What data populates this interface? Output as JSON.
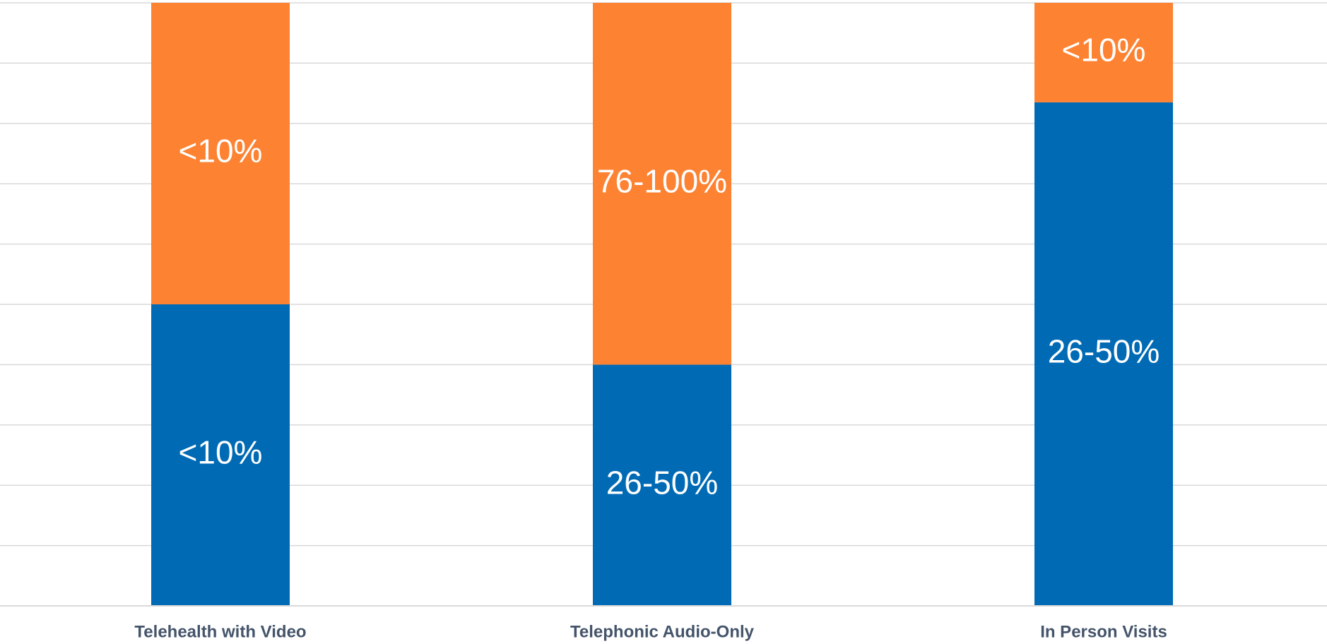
{
  "chart_data": {
    "type": "bar",
    "stacked": true,
    "categories": [
      "Telehealth with Video",
      "Telephonic Audio-Only",
      "In Person Visits"
    ],
    "series": [
      {
        "values": [
          50,
          40,
          83.5
        ],
        "labels": [
          "<10%",
          "26-50%",
          "26-50%"
        ],
        "color": "#006ab4"
      },
      {
        "values": [
          50,
          60,
          16.5
        ],
        "labels": [
          "<10%",
          "76-100%",
          "<10%"
        ],
        "color": "#fd8232"
      }
    ],
    "ylim": [
      0,
      100
    ],
    "grid": true,
    "title": "",
    "xlabel": "",
    "ylabel": ""
  }
}
